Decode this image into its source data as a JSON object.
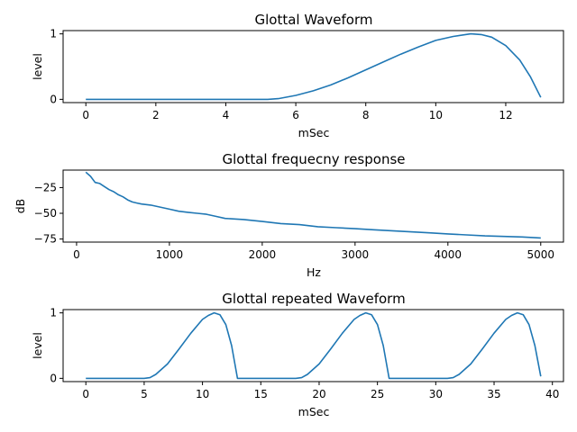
{
  "chart_data": [
    {
      "type": "line",
      "title": "Glottal Waveform",
      "xlabel": "mSec",
      "ylabel": "level",
      "xlim": [
        -0.65,
        13.65
      ],
      "ylim": [
        -0.05,
        1.05
      ],
      "xticks": [
        0,
        2,
        4,
        6,
        8,
        10,
        12
      ],
      "yticks": [
        0,
        1
      ],
      "grid": false,
      "series": [
        {
          "x": [
            0,
            1,
            2,
            3,
            4,
            5,
            5.2,
            5.5,
            6,
            6.5,
            7,
            7.5,
            8,
            8.5,
            9,
            9.5,
            10,
            10.5,
            11,
            11.3,
            11.6,
            12,
            12.4,
            12.7,
            13
          ],
          "y": [
            0,
            0,
            0,
            0,
            0,
            0,
            0,
            0.01,
            0.06,
            0.13,
            0.22,
            0.33,
            0.45,
            0.57,
            0.69,
            0.8,
            0.9,
            0.96,
            1.0,
            0.99,
            0.95,
            0.82,
            0.6,
            0.35,
            0.03
          ]
        }
      ]
    },
    {
      "type": "line",
      "title": "Glottal frequecny response",
      "xlabel": "Hz",
      "ylabel": "dB",
      "xlim": [
        -145,
        5245
      ],
      "ylim": [
        -78,
        -8
      ],
      "xticks": [
        0,
        1000,
        2000,
        3000,
        4000,
        5000
      ],
      "yticks": [
        -25,
        -50,
        -75
      ],
      "grid": false,
      "series": [
        {
          "x": [
            100,
            150,
            200,
            250,
            300,
            350,
            400,
            450,
            500,
            550,
            600,
            650,
            700,
            800,
            900,
            1000,
            1100,
            1200,
            1300,
            1400,
            1500,
            1600,
            1800,
            2000,
            2200,
            2400,
            2600,
            2800,
            3000,
            3200,
            3400,
            3600,
            3800,
            4000,
            4200,
            4400,
            4600,
            4800,
            5000
          ],
          "y": [
            -10,
            -14,
            -20,
            -21,
            -24,
            -27,
            -29,
            -32,
            -34,
            -37,
            -39,
            -40,
            -41,
            -42,
            -44,
            -46,
            -48,
            -49,
            -50,
            -51,
            -53,
            -55,
            -56,
            -58,
            -60,
            -61,
            -63,
            -64,
            -65,
            -66,
            -67,
            -68,
            -69,
            -70,
            -71,
            -72,
            -72.5,
            -73,
            -74
          ]
        }
      ]
    },
    {
      "type": "line",
      "title": "Glottal repeated Waveform",
      "xlabel": "mSec",
      "ylabel": "level",
      "xlim": [
        -1.95,
        40.95
      ],
      "ylim": [
        -0.05,
        1.05
      ],
      "xticks": [
        0,
        5,
        10,
        15,
        20,
        25,
        30,
        35,
        40
      ],
      "yticks": [
        0,
        1
      ],
      "grid": false,
      "series": [
        {
          "x": [
            0,
            5,
            5.5,
            6,
            7,
            8,
            9,
            10,
            10.5,
            11,
            11.5,
            12,
            12.5,
            13,
            18,
            18.5,
            19,
            20,
            21,
            22,
            23,
            23.5,
            24,
            24.5,
            25,
            25.5,
            26,
            31,
            31.5,
            32,
            33,
            34,
            35,
            36,
            36.5,
            37,
            37.5,
            38,
            38.5,
            39
          ],
          "y": [
            0,
            0,
            0.01,
            0.06,
            0.22,
            0.45,
            0.69,
            0.9,
            0.96,
            1.0,
            0.97,
            0.82,
            0.5,
            0.0,
            0,
            0.01,
            0.06,
            0.22,
            0.45,
            0.69,
            0.9,
            0.96,
            1.0,
            0.97,
            0.82,
            0.5,
            0.0,
            0,
            0.01,
            0.06,
            0.22,
            0.45,
            0.69,
            0.9,
            0.96,
            1.0,
            0.97,
            0.82,
            0.5,
            0.03
          ]
        }
      ]
    }
  ]
}
